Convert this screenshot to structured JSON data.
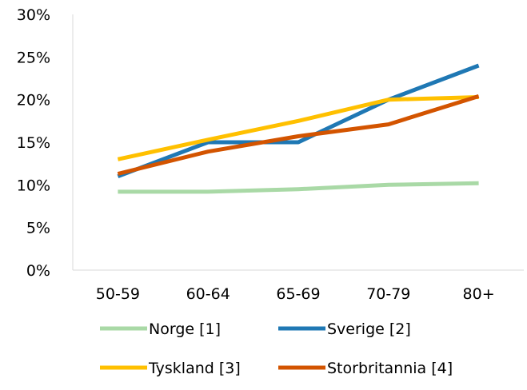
{
  "chart_data": {
    "type": "line",
    "title": "",
    "xlabel": "",
    "ylabel": "",
    "categories": [
      "50-59",
      "60-64",
      "65-69",
      "70-79",
      "80+"
    ],
    "ylim": [
      0,
      30
    ],
    "y_ticks": [
      "0%",
      "5%",
      "10%",
      "15%",
      "20%",
      "25%",
      "30%"
    ],
    "y_tick_values": [
      0,
      5,
      10,
      15,
      20,
      25,
      30
    ],
    "grid": false,
    "legend_position": "bottom",
    "series": [
      {
        "name": "Norge [1]",
        "color": "#a9d9a6",
        "values": [
          9.2,
          9.2,
          9.5,
          10.0,
          10.2
        ]
      },
      {
        "name": "Sverige [2]",
        "color": "#1f78b4",
        "values": [
          11.0,
          15.0,
          15.0,
          20.0,
          24.0
        ]
      },
      {
        "name": "Tyskland [3]",
        "color": "#ffc000",
        "values": [
          13.0,
          15.3,
          17.5,
          20.0,
          20.3
        ]
      },
      {
        "name": "Storbritannia [4]",
        "color": "#d35400",
        "values": [
          11.3,
          13.9,
          15.7,
          17.1,
          20.4
        ]
      }
    ]
  }
}
